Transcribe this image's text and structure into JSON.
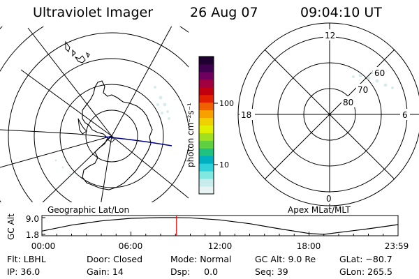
{
  "header": {
    "title": "Ultraviolet Imager",
    "date": "26 Aug 07",
    "time": "09:04:10 UT"
  },
  "colorbar": {
    "unit_label": "photon cm⁻²s⁻¹",
    "ticks": [
      "100",
      "10"
    ],
    "scale": "log",
    "colors": [
      "#e8f4f4",
      "#c8ecec",
      "#80e8e0",
      "#30d0d8",
      "#00b0c0",
      "#20c080",
      "#60d040",
      "#a0e020",
      "#e0f000",
      "#f0d000",
      "#f8a000",
      "#f06000",
      "#e02000",
      "#c00010",
      "#a00040",
      "#700060",
      "#400050",
      "#200030"
    ]
  },
  "left_map": {
    "label": "Geographic Lat/Lon"
  },
  "right_map": {
    "label": "Apex MLat/MLT",
    "mlt_labels": {
      "top": "12",
      "left": "18",
      "right": "6",
      "bottom": "0"
    },
    "lat_labels": [
      "60",
      "70",
      "80"
    ]
  },
  "chart_data": {
    "type": "line",
    "title": "",
    "ylabel": "GC Alt",
    "yticks": [
      "9.0",
      "1.8"
    ],
    "ylim": [
      1.8,
      9.0
    ],
    "xticks": [
      "00:00",
      "06:00",
      "12:00",
      "18:00",
      "23:59"
    ],
    "x_hours": [
      0,
      2,
      4,
      6,
      8,
      9,
      10,
      12,
      14,
      16,
      18,
      19,
      20,
      22,
      24
    ],
    "y_alt": [
      3.2,
      5.8,
      7.6,
      8.7,
      9.0,
      9.0,
      8.9,
      8.0,
      6.4,
      4.2,
      2.2,
      1.8,
      2.6,
      4.2,
      6.0
    ],
    "current_time_marker_hours": 9.07,
    "marker_color": "#ff0000"
  },
  "footer": {
    "row1": {
      "flt": "Flt: LBHL",
      "door": "Door: Closed",
      "mode": "Mode: Normal",
      "gcalt": "GC Alt: 9.0 Re",
      "glat": "GLat: −80.7"
    },
    "row2": {
      "ip": "IP: 36.0",
      "gain": "Gain: 14",
      "dsp": "Dsp:     0.0",
      "seq": "Seq: 39",
      "glon": "GLon: 265.5"
    }
  }
}
